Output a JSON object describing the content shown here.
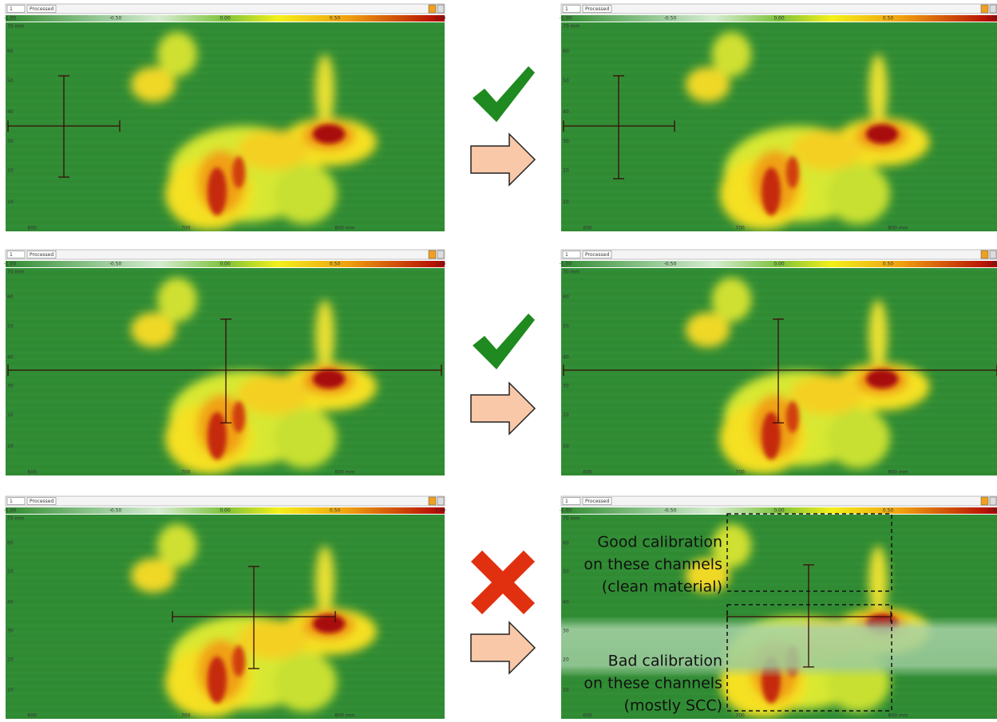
{
  "toolbar": {
    "channel": "1",
    "mode": "Processed"
  },
  "colorbar": {
    "labels": [
      "-1.00",
      "-0.50",
      "0.00",
      "0.50",
      "1.00"
    ]
  },
  "axes": {
    "y_labels": [
      "70 mm",
      "60",
      "50",
      "40",
      "30",
      "20",
      "10"
    ],
    "x_labels": [
      "600",
      "700",
      "800 mm"
    ]
  },
  "annotations": {
    "good": [
      "Good calibration",
      "on these channels",
      "(clean material)"
    ],
    "bad": [
      "Bad calibration",
      "on these channels",
      "(mostly SCC)"
    ]
  }
}
